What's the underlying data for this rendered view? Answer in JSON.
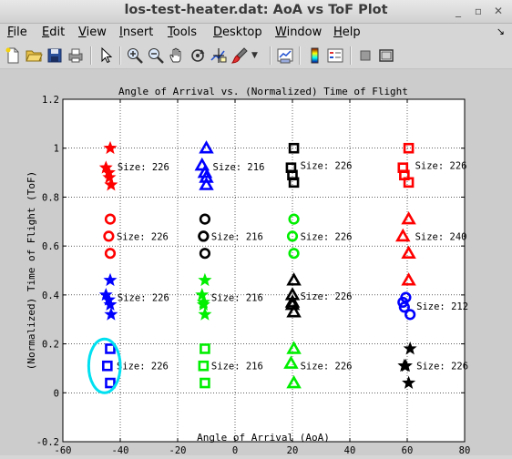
{
  "window": {
    "title": "los-test-heater.dat: AoA vs ToF Plot"
  },
  "menubar": {
    "items": [
      {
        "label": "File",
        "u": "F",
        "rest": "ile"
      },
      {
        "label": "Edit",
        "u": "E",
        "rest": "dit"
      },
      {
        "label": "View",
        "u": "V",
        "rest": "iew"
      },
      {
        "label": "Insert",
        "u": "I",
        "rest": "nsert"
      },
      {
        "label": "Tools",
        "u": "T",
        "rest": "ools"
      },
      {
        "label": "Desktop",
        "u": "D",
        "rest": "esktop"
      },
      {
        "label": "Window",
        "u": "W",
        "rest": "indow"
      },
      {
        "label": "Help",
        "u": "H",
        "rest": "elp"
      }
    ]
  },
  "toolbar": {
    "icons": [
      "new-file-icon",
      "open-folder-icon",
      "save-icon",
      "print-icon",
      "pointer-icon",
      "zoom-in-icon",
      "zoom-out-icon",
      "pan-hand-icon",
      "rotate-3d-icon",
      "data-cursor-icon",
      "brush-icon",
      "brush-dropdown-icon",
      "link-plot-icon",
      "colorbar-icon",
      "legend-icon",
      "hide-plot-tools-icon",
      "show-plot-tools-icon"
    ]
  },
  "chart_data": {
    "type": "scatter",
    "title": "Angle of Arrival vs. (Normalized) Time of Flight",
    "xlabel": "Angle of Arrival (AoA)",
    "ylabel": "(Normalized) Time of Flight (ToF)",
    "xlim": [
      -60,
      80
    ],
    "ylim": [
      -0.2,
      1.2
    ],
    "xticks": [
      "-60",
      "-40",
      "-20",
      "0",
      "20",
      "40",
      "60",
      "80"
    ],
    "yticks": [
      "-0.2",
      "0",
      "0.2",
      "0.4",
      "0.6",
      "0.8",
      "1",
      "1.2"
    ],
    "grid": true,
    "clusters": [
      {
        "marker": "star",
        "color": "#ff0000",
        "x": [
          -43.5,
          -45,
          -44,
          -43.8,
          -43.2
        ],
        "y": [
          1.0,
          0.92,
          0.9,
          0.88,
          0.85
        ],
        "label": "Size: 226"
      },
      {
        "marker": "circle",
        "color": "#ff0000",
        "x": [
          -43.5,
          -44,
          -43.5
        ],
        "y": [
          0.71,
          0.64,
          0.57
        ],
        "label": "Size: 226"
      },
      {
        "marker": "star",
        "color": "#0000ff",
        "x": [
          -43.5,
          -45,
          -44,
          -43.5,
          -43.2
        ],
        "y": [
          0.46,
          0.4,
          0.38,
          0.36,
          0.32
        ],
        "label": "Size: 226"
      },
      {
        "marker": "square",
        "color": "#0000ff",
        "x": [
          -43.5,
          -44.5,
          -43.5
        ],
        "y": [
          0.18,
          0.11,
          0.04
        ],
        "label": "Size: 226"
      },
      {
        "marker": "triangle",
        "color": "#0000ff",
        "x": [
          -10,
          -11.5,
          -10.5,
          -10,
          -10
        ],
        "y": [
          1.0,
          0.93,
          0.9,
          0.88,
          0.85
        ],
        "label": "Size: 216"
      },
      {
        "marker": "circle",
        "color": "#000000",
        "x": [
          -10.5,
          -11,
          -11,
          -10.5
        ],
        "y": [
          0.71,
          0.64,
          0.64,
          0.57
        ],
        "label": "Size: 216"
      },
      {
        "marker": "star",
        "color": "#00ee00",
        "x": [
          -10.5,
          -11.5,
          -11,
          -11,
          -10.5
        ],
        "y": [
          0.46,
          0.4,
          0.37,
          0.36,
          0.32
        ],
        "label": "Size: 216"
      },
      {
        "marker": "square",
        "color": "#00ee00",
        "x": [
          -10.5,
          -11,
          -10.5
        ],
        "y": [
          0.18,
          0.11,
          0.04
        ],
        "label": "Size: 216"
      },
      {
        "marker": "square",
        "color": "#000000",
        "x": [
          20.5,
          19.5,
          20,
          20.5
        ],
        "y": [
          1.0,
          0.92,
          0.89,
          0.86
        ],
        "label": "Size: 226"
      },
      {
        "marker": "circle",
        "color": "#00ee00",
        "x": [
          20.5,
          20,
          20.5
        ],
        "y": [
          0.71,
          0.64,
          0.57
        ],
        "label": "Size: 226"
      },
      {
        "marker": "triangle",
        "color": "#000000",
        "x": [
          20.5,
          20,
          20,
          20,
          20.5
        ],
        "y": [
          0.46,
          0.4,
          0.37,
          0.36,
          0.33
        ],
        "label": "Size: 226"
      },
      {
        "marker": "triangle",
        "color": "#00ee00",
        "x": [
          20.5,
          19.5,
          20.5
        ],
        "y": [
          0.18,
          0.12,
          0.04
        ],
        "label": "Size: 226"
      },
      {
        "marker": "square",
        "color": "#ff0000",
        "x": [
          60.5,
          58.5,
          59,
          60.5
        ],
        "y": [
          1.0,
          0.92,
          0.89,
          0.86
        ],
        "label": "Size: 226"
      },
      {
        "marker": "triangle",
        "color": "#ff0000",
        "x": [
          60.5,
          58.5,
          60.5
        ],
        "y": [
          0.71,
          0.64,
          0.57
        ],
        "label": "Size: 240"
      },
      {
        "marker": "circle",
        "color": "#0000ff",
        "x": [
          59.5,
          58.5,
          59,
          61
        ],
        "y": [
          0.39,
          0.37,
          0.35,
          0.32
        ],
        "label": "Size: 212"
      },
      {
        "marker": "triangle",
        "color": "#ff0000",
        "x": [
          60.5
        ],
        "y": [
          0.46
        ],
        "label": ""
      },
      {
        "marker": "star",
        "color": "#000000",
        "x": [
          61,
          59.5,
          59,
          60.5
        ],
        "y": [
          0.18,
          0.11,
          0.11,
          0.04
        ],
        "label": "Size: 226"
      }
    ],
    "highlight": {
      "shape": "ellipse",
      "color": "#00e0f0",
      "x": -45.5,
      "y": 0.11,
      "rx": 5.5,
      "ry": 0.11
    }
  }
}
